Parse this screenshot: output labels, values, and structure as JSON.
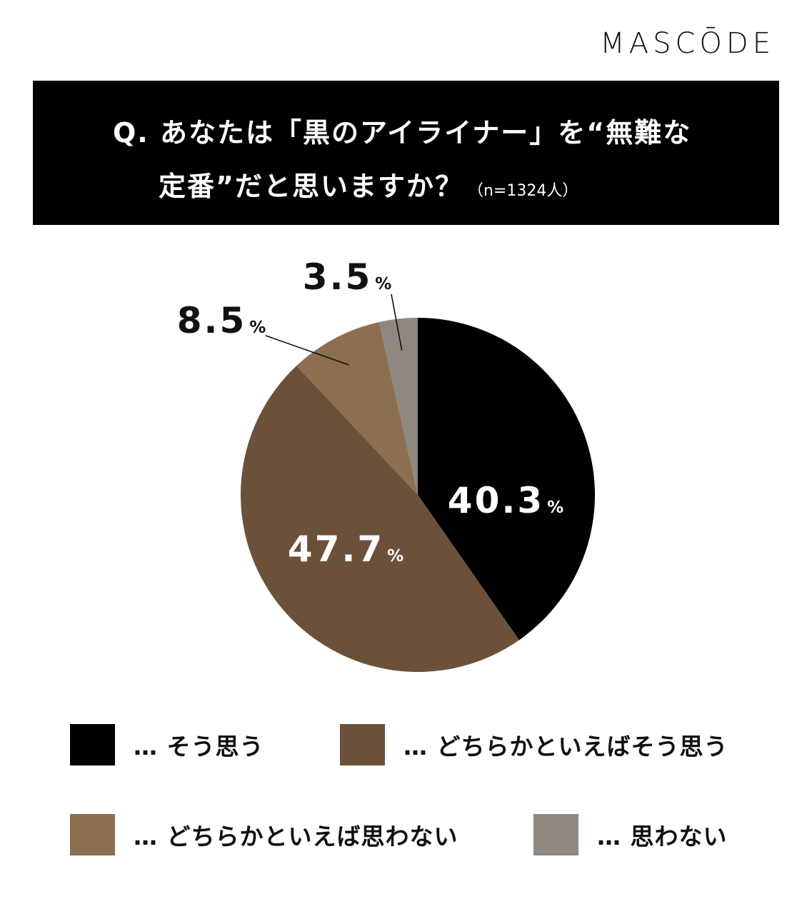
{
  "brand": "MASCŌDE",
  "question": {
    "line1": "Q. あなたは「黒のアイライナー」を“無難な",
    "line2": "定番”だと思いますか？",
    "sample": "（n=1324人）"
  },
  "chart_data": {
    "type": "pie",
    "start": "12 o'clock, clockwise",
    "slices": [
      {
        "label": "そう思う",
        "value": 40.3,
        "display": "40.3",
        "color": "#000000"
      },
      {
        "label": "どちらかといえばそう思う",
        "value": 47.7,
        "display": "47.7",
        "color": "#6b5139"
      },
      {
        "label": "どちらかといえば思わない",
        "value": 8.5,
        "display": "8.5",
        "color": "#8c6f51"
      },
      {
        "label": "思わない",
        "value": 3.5,
        "display": "3.5",
        "color": "#8e8880"
      }
    ],
    "unit": "%",
    "legend": [
      {
        "text": "… そう思う"
      },
      {
        "text": "… どちらかといえばそう思う"
      },
      {
        "text": "… どちらかといえば思わない"
      },
      {
        "text": "… 思わない"
      }
    ]
  }
}
